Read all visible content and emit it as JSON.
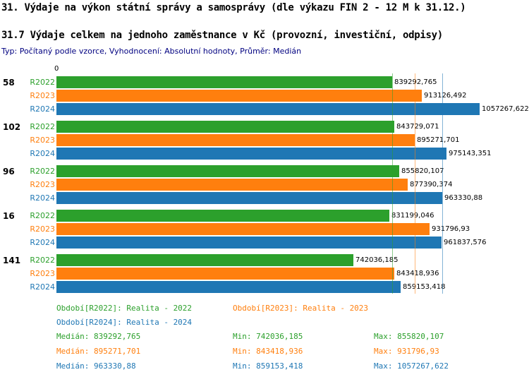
{
  "title": "31. Výdaje na výkon státní správy a samosprávy (dle výkazu FIN 2 - 12 M k 31.12.)",
  "subtitle": "31.7 Výdaje celkem na jednoho zaměstnance v Kč (provozní, investiční, odpisy)",
  "meta": "Typ: Počítaný podle vzorce, Vyhodnocení: Absolutní hodnoty, Průměr: Medián",
  "axis_origin_label": "0",
  "colors": {
    "r2022": "#2ca02c",
    "r2023": "#ff7f0e",
    "r2024": "#1f77b4"
  },
  "chart_data": {
    "type": "bar",
    "orientation": "horizontal",
    "unit": "Kč",
    "categories": [
      "58",
      "102",
      "96",
      "16",
      "141"
    ],
    "series": [
      {
        "name": "R2022",
        "color": "#2ca02c",
        "values": [
          839292.765,
          843729.071,
          855820.107,
          831199.046,
          742036.185
        ],
        "labels": [
          "839292,765",
          "843729,071",
          "855820,107",
          "831199,046",
          "742036,185"
        ]
      },
      {
        "name": "R2023",
        "color": "#ff7f0e",
        "values": [
          913126.492,
          895271.701,
          877390.374,
          931796.93,
          843418.936
        ],
        "labels": [
          "913126,492",
          "895271,701",
          "877390,374",
          "931796,93",
          "843418,936"
        ]
      },
      {
        "name": "R2024",
        "color": "#1f77b4",
        "values": [
          1057267.622,
          975143.351,
          963330.88,
          961837.576,
          859153.418
        ],
        "labels": [
          "1057267,622",
          "975143,351",
          "963330,88",
          "961837,576",
          "859153,418"
        ]
      }
    ],
    "xlim": [
      0,
      1057267.622
    ],
    "median_lines": [
      {
        "value": 839292.765,
        "color": "#2ca02c"
      },
      {
        "value": 895271.701,
        "color": "#ff7f0e"
      },
      {
        "value": 963330.88,
        "color": "#1f77b4"
      }
    ]
  },
  "legend": [
    {
      "label": "Období[R2022]: Realita - 2022",
      "color": "#2ca02c"
    },
    {
      "label": "Období[R2023]: Realita - 2023",
      "color": "#ff7f0e"
    },
    {
      "label": "Období[R2024]: Realita - 2024",
      "color": "#1f77b4"
    }
  ],
  "stats": [
    {
      "color": "#2ca02c",
      "median": "Medián: 839292,765",
      "min": "Min: 742036,185",
      "max": "Max: 855820,107"
    },
    {
      "color": "#ff7f0e",
      "median": "Medián: 895271,701",
      "min": "Min: 843418,936",
      "max": "Max: 931796,93"
    },
    {
      "color": "#1f77b4",
      "median": "Medián: 963330,88",
      "min": "Min: 859153,418",
      "max": "Max: 1057267,622"
    }
  ]
}
